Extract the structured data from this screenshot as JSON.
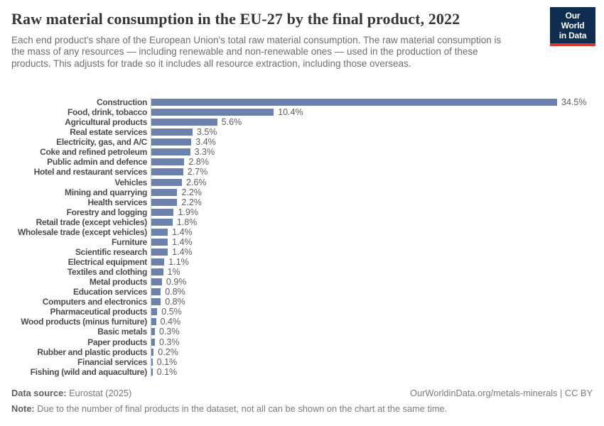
{
  "header": {
    "title": "Raw material consumption in the EU-27 by the final product, 2022",
    "subtitle": "Each end product's share of the European Union's total raw material consumption. The raw material consumption is the mass of any resources — including renewable and non-renewable ones — used in the production of these products. This adjusts for trade so it includes all resource extraction, including those overseas.",
    "logo": {
      "line1": "Our World",
      "line2": "in Data"
    }
  },
  "chart_data": {
    "type": "bar",
    "orientation": "horizontal",
    "title": "Raw material consumption in the EU-27 by the final product, 2022",
    "year": "2022",
    "unit": "%",
    "categories": [
      "Construction",
      "Food, drink, tobacco",
      "Agricultural products",
      "Real estate services",
      "Electricity, gas, and A/C",
      "Coke and refined petroleum",
      "Public admin and defence",
      "Hotel and restaurant services",
      "Vehicles",
      "Mining and quarrying",
      "Health services",
      "Forestry and logging",
      "Retail trade (except vehicles)",
      "Wholesale trade (except vehicles)",
      "Furniture",
      "Scientific research",
      "Electrical equipment",
      "Textiles and clothing",
      "Metal products",
      "Education services",
      "Computers and electronics",
      "Pharmaceutical products",
      "Wood products (minus furniture)",
      "Basic metals",
      "Paper products",
      "Rubber and plastic products",
      "Financial services",
      "Fishing (wild and aquaculture)"
    ],
    "values": [
      34.5,
      10.4,
      5.6,
      3.5,
      3.4,
      3.3,
      2.8,
      2.7,
      2.6,
      2.2,
      2.2,
      1.9,
      1.8,
      1.4,
      1.4,
      1.4,
      1.1,
      1.0,
      0.9,
      0.8,
      0.8,
      0.5,
      0.4,
      0.3,
      0.3,
      0.2,
      0.1,
      0.1
    ],
    "value_labels": [
      "34.5%",
      "10.4%",
      "5.6%",
      "3.5%",
      "3.4%",
      "3.3%",
      "2.8%",
      "2.7%",
      "2.6%",
      "2.2%",
      "2.2%",
      "1.9%",
      "1.8%",
      "1.4%",
      "1.4%",
      "1.4%",
      "1.1%",
      "1%",
      "0.9%",
      "0.8%",
      "0.8%",
      "0.5%",
      "0.4%",
      "0.3%",
      "0.3%",
      "0.2%",
      "0.1%",
      "0.1%"
    ],
    "xlim": [
      0,
      34.5
    ],
    "grid": false,
    "legend": false,
    "bar_color": "#6c81ab",
    "axis_line_color": "#bac5d6"
  },
  "footer": {
    "source_label": "Data source:",
    "source_value": "Eurostat (2025)",
    "credit": "OurWorldinData.org/metals-minerals | CC BY",
    "note_label": "Note:",
    "note_value": "Due to the number of final products in the dataset, not all can be shown on the chart at the same time."
  },
  "colors": {
    "bar": "#6c81ab",
    "logo_navy": "#0f2e4f",
    "logo_red": "#d93a2e",
    "title_text": "#363636",
    "subtitle_text": "#6e6e6e"
  }
}
